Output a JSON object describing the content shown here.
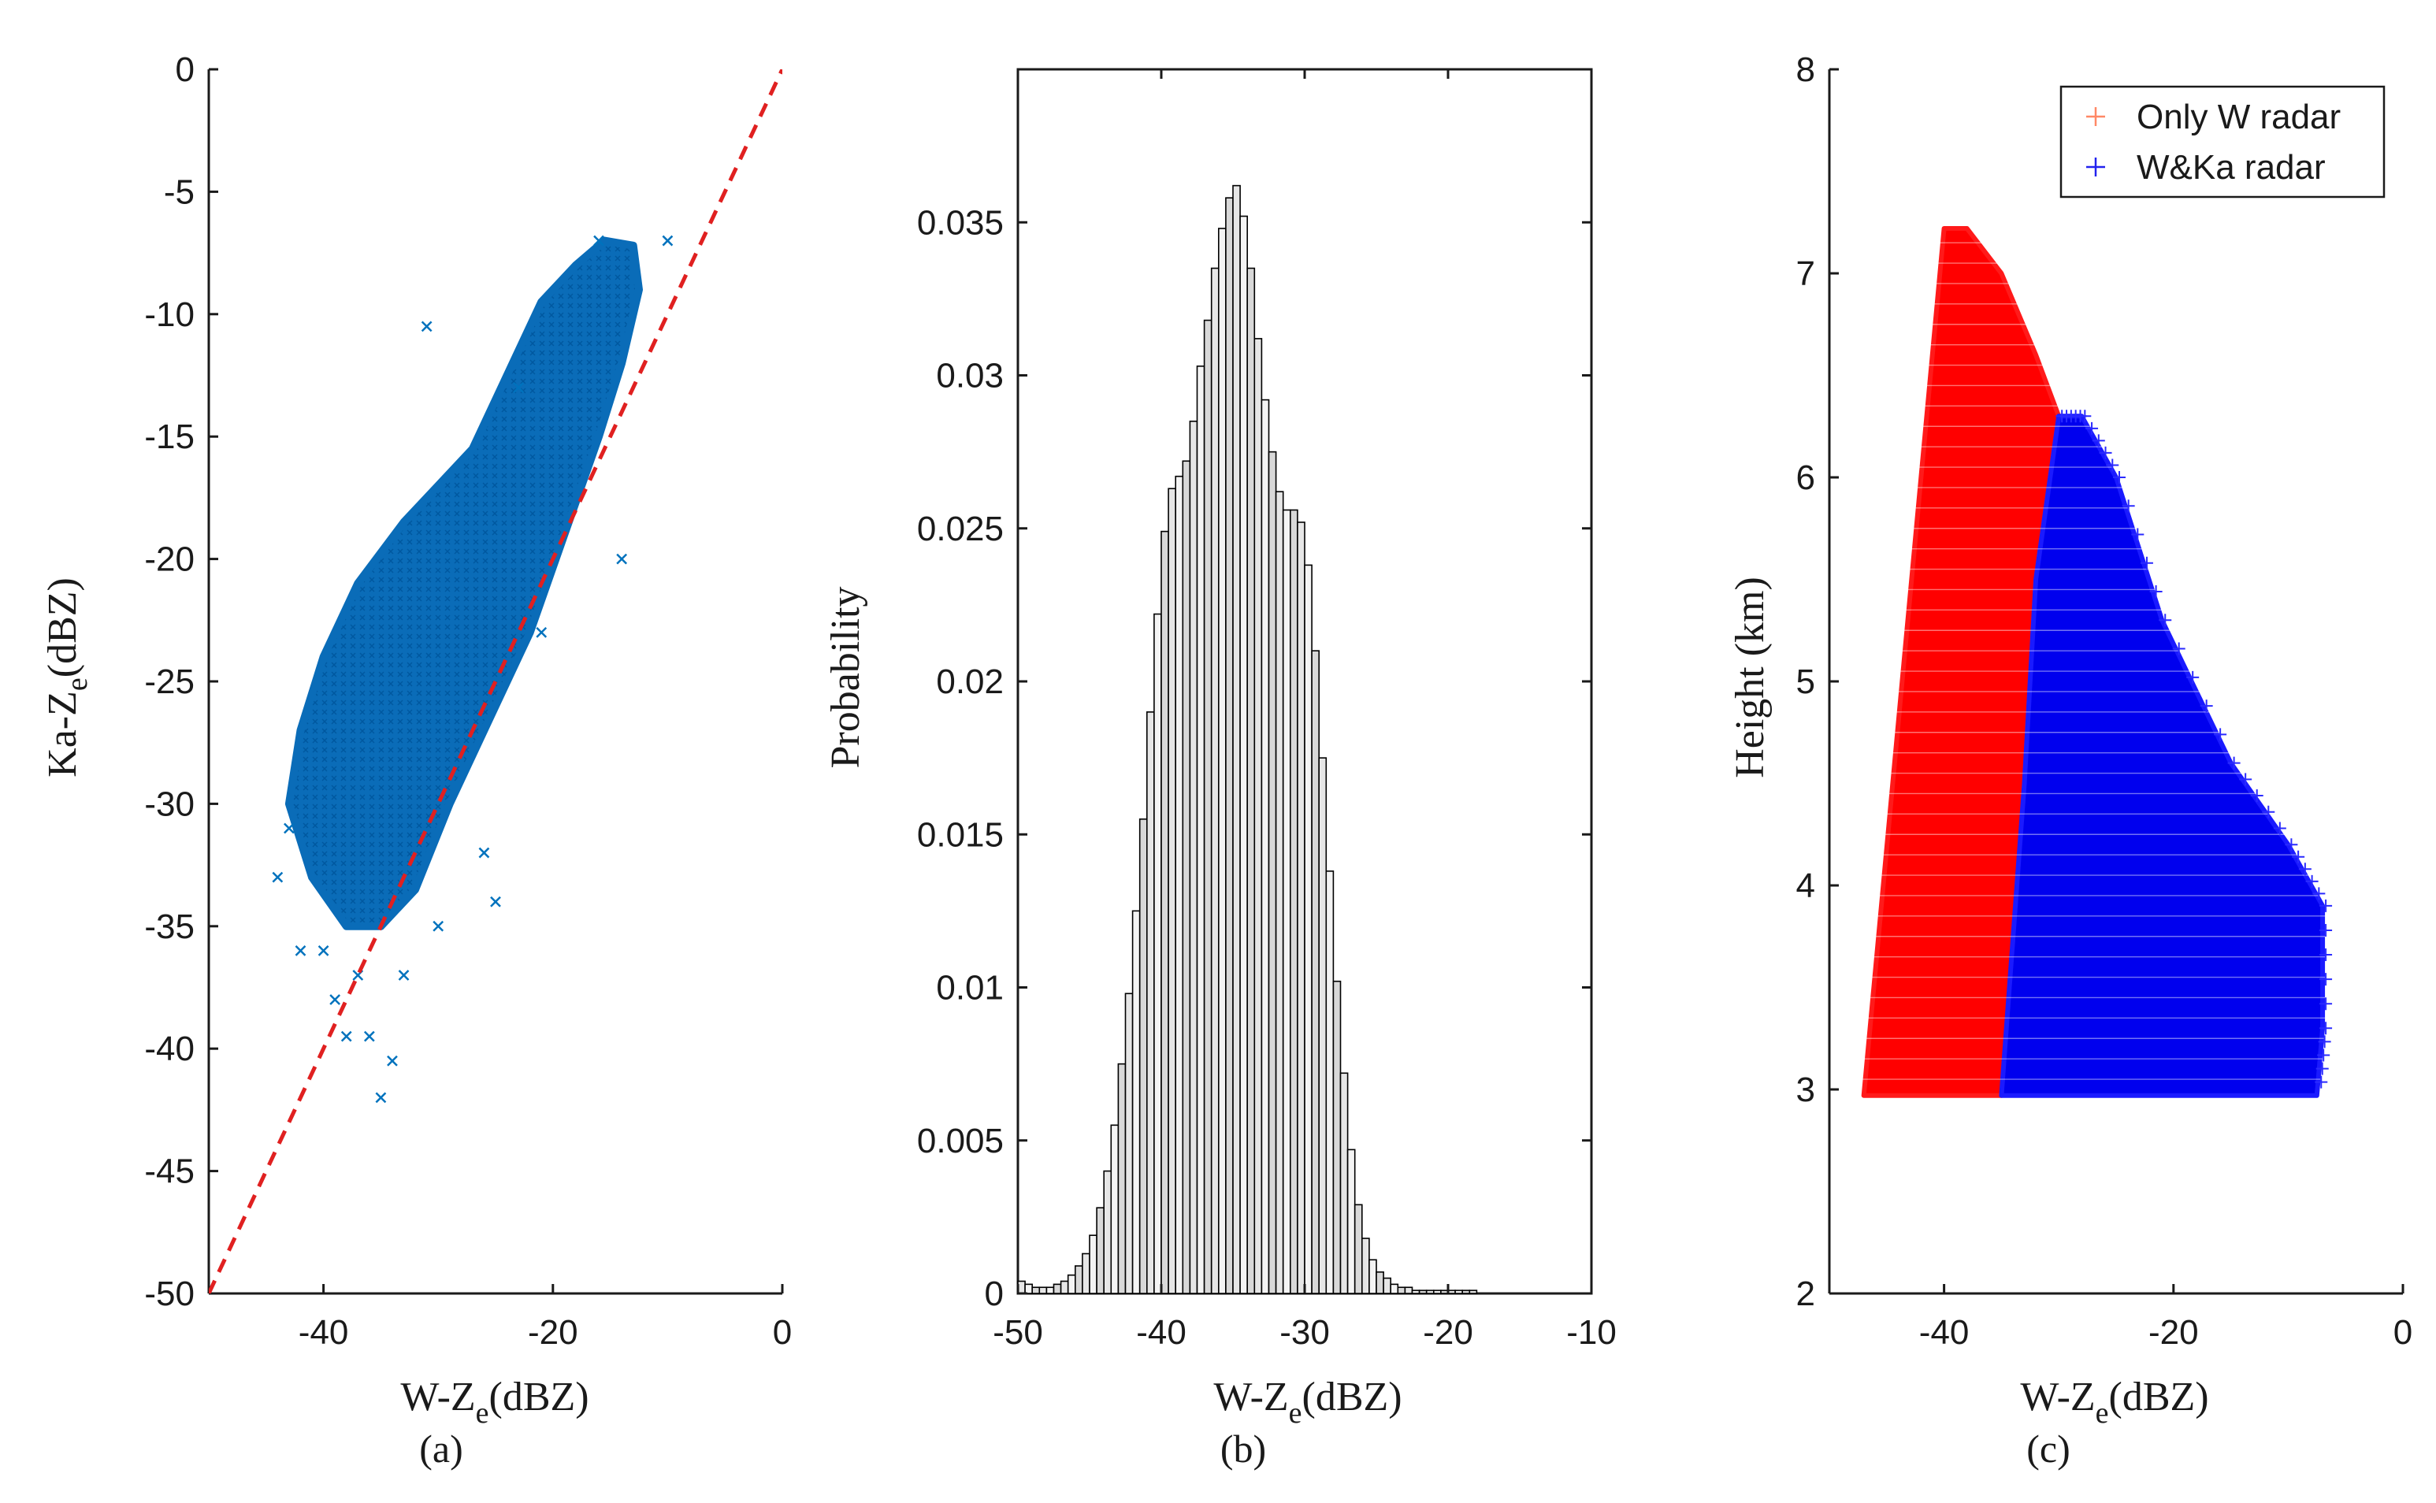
{
  "chart_data": [
    {
      "id": "a",
      "type": "scatter",
      "caption": "(a)",
      "xlabel": "W-Z",
      "xlabel_sub": "e",
      "xlabel_unit": "(dBZ)",
      "ylabel": "Ka-Z",
      "ylabel_sub": "e",
      "ylabel_unit": "(dBZ)",
      "xlim": [
        -50,
        0
      ],
      "ylim": [
        -50,
        0
      ],
      "xticks": [
        "-40",
        "-20",
        "0"
      ],
      "xtick_values": [
        -40,
        -20,
        0
      ],
      "yticks": [
        "0",
        "-5",
        "-10",
        "-15",
        "-20",
        "-25",
        "-30",
        "-35",
        "-40",
        "-45",
        "-50"
      ],
      "ytick_values": [
        0,
        -5,
        -10,
        -15,
        -20,
        -25,
        -30,
        -35,
        -40,
        -45,
        -50
      ],
      "marker": "x",
      "color": "#0072bd",
      "cloud_polygon": [
        [
          -43,
          -30
        ],
        [
          -41,
          -33
        ],
        [
          -38,
          -35
        ],
        [
          -35,
          -35
        ],
        [
          -32,
          -33.5
        ],
        [
          -29,
          -30
        ],
        [
          -26,
          -27
        ],
        [
          -22,
          -23
        ],
        [
          -19,
          -19
        ],
        [
          -16,
          -15
        ],
        [
          -14,
          -12
        ],
        [
          -12.5,
          -9
        ],
        [
          -13,
          -7.2
        ],
        [
          -15.5,
          -7
        ],
        [
          -18,
          -8
        ],
        [
          -21,
          -9.5
        ],
        [
          -24,
          -12.5
        ],
        [
          -27,
          -15.5
        ],
        [
          -30,
          -17
        ],
        [
          -33,
          -18.5
        ],
        [
          -37,
          -21
        ],
        [
          -40,
          -24
        ],
        [
          -42,
          -27
        ]
      ],
      "outliers": [
        [
          -40,
          -36
        ],
        [
          -39,
          -38
        ],
        [
          -38,
          -39.5
        ],
        [
          -36,
          -39.5
        ],
        [
          -34,
          -40.5
        ],
        [
          -35,
          -42
        ],
        [
          -43,
          -31
        ],
        [
          -44,
          -33
        ],
        [
          -42,
          -36
        ],
        [
          -37,
          -37
        ],
        [
          -25,
          -34
        ],
        [
          -21,
          -23
        ],
        [
          -14,
          -20
        ],
        [
          -10,
          -7
        ],
        [
          -31,
          -10.5
        ],
        [
          -23,
          -13
        ],
        [
          -16,
          -7
        ],
        [
          -26,
          -32
        ],
        [
          -33,
          -37
        ],
        [
          -30,
          -35
        ]
      ],
      "reference_line": {
        "x": [
          -50,
          0
        ],
        "y": [
          -50,
          0
        ],
        "color": "#e02020",
        "style": "dashed"
      }
    },
    {
      "id": "b",
      "type": "bar",
      "caption": "(b)",
      "xlabel": "W-Z",
      "xlabel_sub": "e",
      "xlabel_unit": "(dBZ)",
      "ylabel": "Probability",
      "xlim": [
        -50,
        -10
      ],
      "ylim": [
        0,
        0.04
      ],
      "xticks": [
        "-50",
        "-40",
        "-30",
        "-20",
        "-10"
      ],
      "xtick_values": [
        -50,
        -40,
        -30,
        -20,
        -10
      ],
      "yticks": [
        "0",
        "0.005",
        "0.01",
        "0.015",
        "0.02",
        "0.025",
        "0.03",
        "0.035"
      ],
      "ytick_values": [
        0,
        0.005,
        0.01,
        0.015,
        0.02,
        0.025,
        0.03,
        0.035
      ],
      "bin_width": 0.5,
      "bin_start": -50,
      "values": [
        0.0004,
        0.0003,
        0.0002,
        0.0002,
        0.0002,
        0.0003,
        0.0004,
        0.0006,
        0.0009,
        0.0013,
        0.0019,
        0.0028,
        0.004,
        0.0055,
        0.0075,
        0.0098,
        0.0125,
        0.0155,
        0.019,
        0.0222,
        0.0249,
        0.0263,
        0.0267,
        0.0272,
        0.0285,
        0.0303,
        0.0318,
        0.0335,
        0.0348,
        0.0358,
        0.0362,
        0.0352,
        0.0335,
        0.0312,
        0.0292,
        0.0275,
        0.0262,
        0.0256,
        0.0256,
        0.0252,
        0.0238,
        0.021,
        0.0175,
        0.0138,
        0.0102,
        0.0072,
        0.0047,
        0.0029,
        0.0018,
        0.0011,
        0.0007,
        0.0005,
        0.0003,
        0.0002,
        0.0002,
        0.0001,
        0.0001,
        0.0001,
        0.0001,
        0.0001,
        0.0001,
        0.0001,
        0.0001,
        0.0001,
        0.0,
        0.0,
        0.0,
        0.0,
        0.0,
        0.0,
        0.0,
        0.0,
        0.0,
        0.0,
        0.0,
        0.0,
        0.0,
        0.0,
        0.0,
        0.0
      ]
    },
    {
      "id": "c",
      "type": "scatter",
      "caption": "(c)",
      "xlabel": "W-Z",
      "xlabel_sub": "e",
      "xlabel_unit": "(dBZ)",
      "ylabel": "Height (km)",
      "xlim": [
        -50,
        0
      ],
      "ylim": [
        2,
        8
      ],
      "xticks": [
        "-40",
        "-20",
        "0"
      ],
      "xtick_values": [
        -40,
        -20,
        0
      ],
      "yticks": [
        "2",
        "3",
        "4",
        "5",
        "6",
        "7",
        "8"
      ],
      "ytick_values": [
        2,
        3,
        4,
        5,
        6,
        7,
        8
      ],
      "marker": "+",
      "series": [
        {
          "name": "Only W radar",
          "color": "#ff0000",
          "region": [
            [
              -47,
              2.97
            ],
            [
              -40,
              7.22
            ],
            [
              -38,
              7.22
            ],
            [
              -35,
              7.0
            ],
            [
              -32,
              6.6
            ],
            [
              -30,
              6.3
            ],
            [
              -32,
              5.5
            ],
            [
              -33,
              4.5
            ],
            [
              -34,
              3.5
            ],
            [
              -35,
              2.97
            ]
          ]
        },
        {
          "name": "W&Ka radar",
          "color": "#0000ff",
          "region": [
            [
              -35,
              2.97
            ],
            [
              -33,
              4.5
            ],
            [
              -32,
              5.5
            ],
            [
              -30,
              6.3
            ],
            [
              -28,
              6.3
            ],
            [
              -25,
              6.0
            ],
            [
              -21,
              5.3
            ],
            [
              -15,
              4.6
            ],
            [
              -10,
              4.2
            ],
            [
              -7,
              3.9
            ],
            [
              -7,
              3.3
            ],
            [
              -7.5,
              2.97
            ]
          ]
        }
      ],
      "legend": {
        "position": "top-right",
        "entries": [
          "Only W radar",
          "W&Ka radar"
        ]
      }
    }
  ]
}
